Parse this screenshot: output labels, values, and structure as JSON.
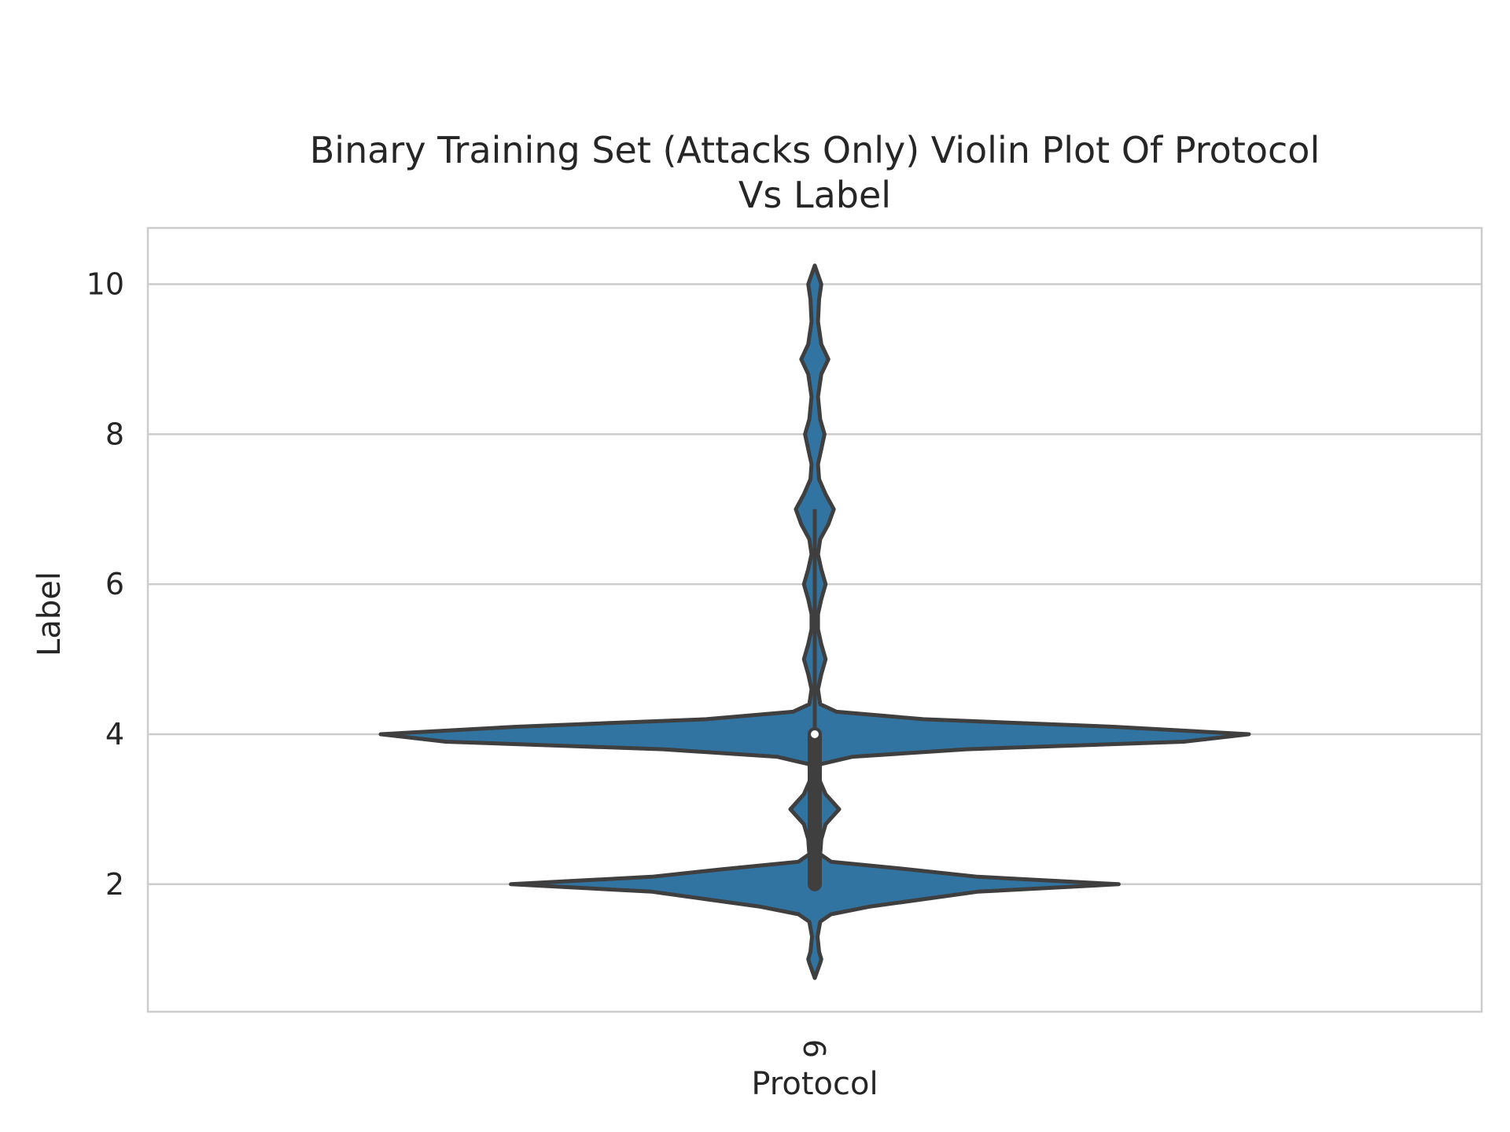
{
  "chart_data": {
    "type": "violin",
    "title_lines": [
      "Binary Training Set  (Attacks Only) Violin Plot Of  Protocol",
      "Vs  Label"
    ],
    "xlabel": "Protocol",
    "ylabel": "Label",
    "categories": [
      "6"
    ],
    "ylim": [
      0.3,
      10.75
    ],
    "yticks": [
      2,
      4,
      6,
      8,
      10
    ],
    "grid": "horizontal",
    "colors": {
      "fill": "#3274a1",
      "edge": "#3f3f3f",
      "grid": "#cccccc",
      "frame": "#cccccc",
      "median": "#ffffff"
    },
    "violin": {
      "density_profile": [
        [
          0.75,
          0.0
        ],
        [
          0.95,
          0.01
        ],
        [
          1.0,
          0.012
        ],
        [
          1.1,
          0.008
        ],
        [
          1.3,
          0.005
        ],
        [
          1.5,
          0.01
        ],
        [
          1.6,
          0.03
        ],
        [
          1.7,
          0.1
        ],
        [
          1.8,
          0.2
        ],
        [
          1.9,
          0.3
        ],
        [
          2.0,
          0.56
        ],
        [
          2.1,
          0.3
        ],
        [
          2.2,
          0.17
        ],
        [
          2.3,
          0.03
        ],
        [
          2.4,
          0.01
        ],
        [
          2.6,
          0.012
        ],
        [
          2.8,
          0.02
        ],
        [
          3.0,
          0.045
        ],
        [
          3.2,
          0.02
        ],
        [
          3.4,
          0.008
        ],
        [
          3.6,
          0.01
        ],
        [
          3.7,
          0.07
        ],
        [
          3.8,
          0.28
        ],
        [
          3.9,
          0.68
        ],
        [
          4.0,
          0.8
        ],
        [
          4.1,
          0.55
        ],
        [
          4.2,
          0.2
        ],
        [
          4.3,
          0.04
        ],
        [
          4.4,
          0.01
        ],
        [
          4.6,
          0.006
        ],
        [
          4.8,
          0.012
        ],
        [
          5.0,
          0.02
        ],
        [
          5.2,
          0.012
        ],
        [
          5.4,
          0.006
        ],
        [
          5.6,
          0.006
        ],
        [
          5.8,
          0.012
        ],
        [
          6.0,
          0.02
        ],
        [
          6.2,
          0.012
        ],
        [
          6.4,
          0.006
        ],
        [
          6.6,
          0.01
        ],
        [
          6.8,
          0.025
        ],
        [
          7.0,
          0.035
        ],
        [
          7.2,
          0.02
        ],
        [
          7.4,
          0.008
        ],
        [
          7.6,
          0.006
        ],
        [
          7.8,
          0.012
        ],
        [
          8.0,
          0.018
        ],
        [
          8.2,
          0.01
        ],
        [
          8.5,
          0.006
        ],
        [
          8.8,
          0.012
        ],
        [
          9.0,
          0.025
        ],
        [
          9.2,
          0.012
        ],
        [
          9.5,
          0.006
        ],
        [
          9.8,
          0.008
        ],
        [
          10.0,
          0.012
        ],
        [
          10.25,
          0.0
        ]
      ],
      "box": {
        "q1": 2.0,
        "median": 4.0,
        "q3": 4.0,
        "whisker_low": 2.0,
        "whisker_high": 7.0
      }
    }
  }
}
